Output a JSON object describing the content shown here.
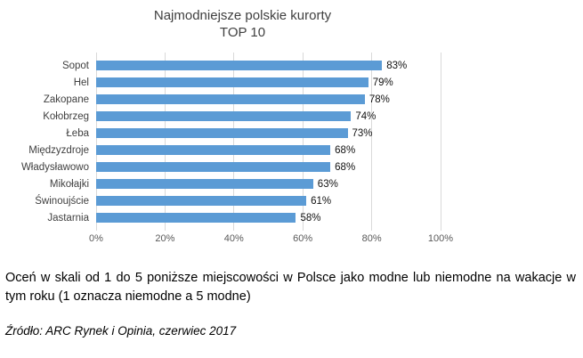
{
  "chart_data": {
    "type": "bar",
    "orientation": "horizontal",
    "title": "Najmodniejsze polskie kurorty",
    "subtitle": "TOP 10",
    "categories": [
      "Sopot",
      "Hel",
      "Zakopane",
      "Kołobrzeg",
      "Łeba",
      "Międzyzdroje",
      "Władysławowo",
      "Mikołajki",
      "Świnoujście",
      "Jastarnia"
    ],
    "values": [
      83,
      79,
      78,
      74,
      73,
      68,
      68,
      63,
      61,
      58
    ],
    "value_labels": [
      "83%",
      "79%",
      "78%",
      "74%",
      "73%",
      "68%",
      "68%",
      "63%",
      "61%",
      "58%"
    ],
    "x_ticks": [
      "0%",
      "20%",
      "40%",
      "60%",
      "80%",
      "100%"
    ],
    "xlim": [
      0,
      100
    ],
    "grid": true,
    "legend": "none",
    "bar_color": "#5b9bd5",
    "gridline_color": "#d9d9d9",
    "title_color": "#404040",
    "tick_color": "#595959"
  },
  "caption": "Oceń w skali od 1 do 5 poniższe miejscowości w Polsce jako modne lub niemodne na wakacje w tym roku (1 oznacza niemodne a 5 modne)",
  "source": "Źródło: ARC Rynek i Opinia, czerwiec 2017"
}
